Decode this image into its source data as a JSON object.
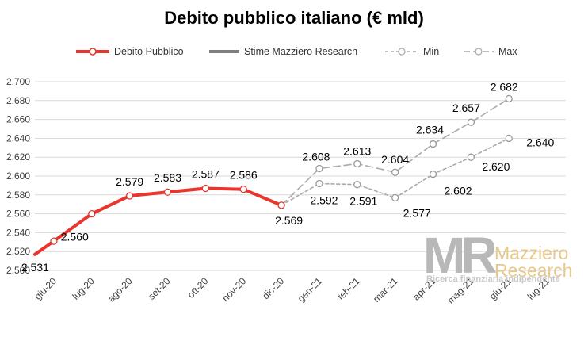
{
  "chart_data": {
    "type": "line",
    "title": "Debito pubblico italiano (€ mld)",
    "categories": [
      "giu-20",
      "lug-20",
      "ago-20",
      "set-20",
      "ott-20",
      "nov-20",
      "dic-20",
      "gen-21",
      "feb-21",
      "mar-21",
      "apr-21",
      "mag-21",
      "giu-21",
      "lug-21"
    ],
    "ylim": [
      2500,
      2700
    ],
    "yticks": [
      2500,
      2520,
      2540,
      2560,
      2580,
      2600,
      2620,
      2640,
      2660,
      2680,
      2700
    ],
    "ytick_labels": [
      "2.500",
      "2.520",
      "2.540",
      "2.560",
      "2.580",
      "2.600",
      "2.620",
      "2.640",
      "2.660",
      "2.680",
      "2.700"
    ],
    "grid": true,
    "legend_position": "top",
    "series": [
      {
        "name": "Debito Pubblico",
        "color": "#e8352d",
        "style": "solid",
        "pre_start_value": 2517,
        "values": [
          2531,
          2560,
          2579,
          2583,
          2587,
          2586,
          2569,
          null,
          null,
          null,
          null,
          null,
          null,
          null
        ],
        "labels": [
          "2.531",
          "2.560",
          "2.579",
          "2.583",
          "2.587",
          "2.586",
          "2.569",
          null,
          null,
          null,
          null,
          null,
          null,
          null
        ]
      },
      {
        "name": "Stime Mazziero Research",
        "color": "#7f7f7f",
        "style": "solid",
        "values": [
          null,
          null,
          null,
          null,
          null,
          null,
          null,
          null,
          null,
          null,
          null,
          null,
          null,
          null
        ],
        "labels": []
      },
      {
        "name": "Min",
        "color": "#aaaaaa",
        "style": "dashed",
        "values": [
          null,
          null,
          null,
          null,
          null,
          null,
          2569,
          2592,
          2591,
          2577,
          2602,
          2620,
          2640,
          null
        ],
        "labels": [
          null,
          null,
          null,
          null,
          null,
          null,
          null,
          "2.592",
          "2.591",
          "2.577",
          "2.602",
          "2.620",
          "2.640",
          null
        ]
      },
      {
        "name": "Max",
        "color": "#aaaaaa",
        "style": "dashed",
        "values": [
          null,
          null,
          null,
          null,
          null,
          null,
          2569,
          2608,
          2613,
          2604,
          2634,
          2657,
          2682,
          null
        ],
        "labels": [
          null,
          null,
          null,
          null,
          null,
          null,
          null,
          "2.608",
          "2.613",
          "2.604",
          "2.634",
          "2.657",
          "2.682",
          null
        ]
      }
    ]
  },
  "watermark": {
    "logo_text": "MR",
    "name": "Mazziero Research",
    "name_line1": "Mazziero",
    "name_line2": "Research",
    "tagline": "Ricerca finanziaria indipendente"
  }
}
